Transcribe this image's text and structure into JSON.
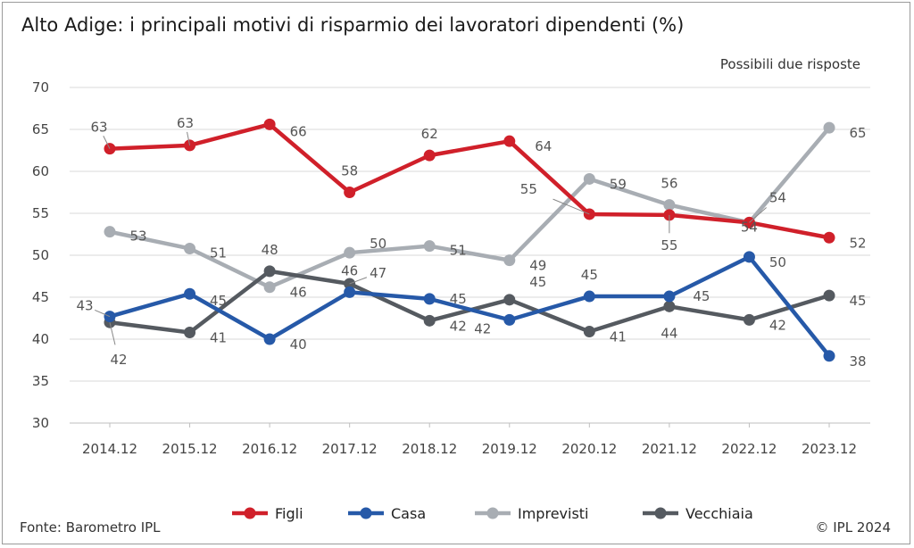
{
  "title": "Alto Adige: i principali motivi di risparmio dei lavoratori dipendenti (%)",
  "subtitle": "Possibili due risposte",
  "source": "Fonte: Barometro IPL",
  "copyright": "© IPL 2024",
  "chart_data": {
    "type": "line",
    "categories": [
      "2014.12",
      "2015.12",
      "2016.12",
      "2017.12",
      "2018.12",
      "2019.12",
      "2020.12",
      "2021.12",
      "2022.12",
      "2023.12"
    ],
    "ylim": [
      30,
      70
    ],
    "yticks": [
      30,
      35,
      40,
      45,
      50,
      55,
      60,
      65,
      70
    ],
    "grid": true,
    "legend_position": "bottom",
    "series": [
      {
        "name": "Figli",
        "color": "#d0202a",
        "values": [
          62.7,
          63.1,
          65.6,
          57.5,
          61.9,
          63.6,
          54.9,
          54.8,
          53.9,
          52.1
        ],
        "labels": [
          "63",
          "63",
          "66",
          "58",
          "62",
          "64",
          "55",
          "55",
          "54",
          "52"
        ]
      },
      {
        "name": "Casa",
        "color": "#2659a8",
        "values": [
          42.7,
          45.4,
          40.0,
          45.6,
          44.8,
          42.3,
          45.1,
          45.1,
          49.8,
          38.0
        ],
        "labels": [
          "43",
          "45",
          "40",
          "46",
          "45",
          "42",
          "45",
          "45",
          "50",
          "38"
        ]
      },
      {
        "name": "Imprevisti",
        "color": "#a8adb3",
        "values": [
          52.8,
          50.8,
          46.2,
          50.3,
          51.1,
          49.4,
          59.1,
          56.0,
          53.9,
          65.2
        ],
        "labels": [
          "53",
          "51",
          "46",
          "50",
          "51",
          "49",
          "59",
          "56",
          "54",
          "65"
        ]
      },
      {
        "name": "Vecchiaia",
        "color": "#555a60",
        "values": [
          42.0,
          40.8,
          48.1,
          46.6,
          42.2,
          44.7,
          40.9,
          43.9,
          42.3,
          45.2
        ],
        "labels": [
          "42",
          "41",
          "48",
          "47",
          "42",
          "45",
          "41",
          "44",
          "42",
          "45"
        ]
      }
    ]
  }
}
